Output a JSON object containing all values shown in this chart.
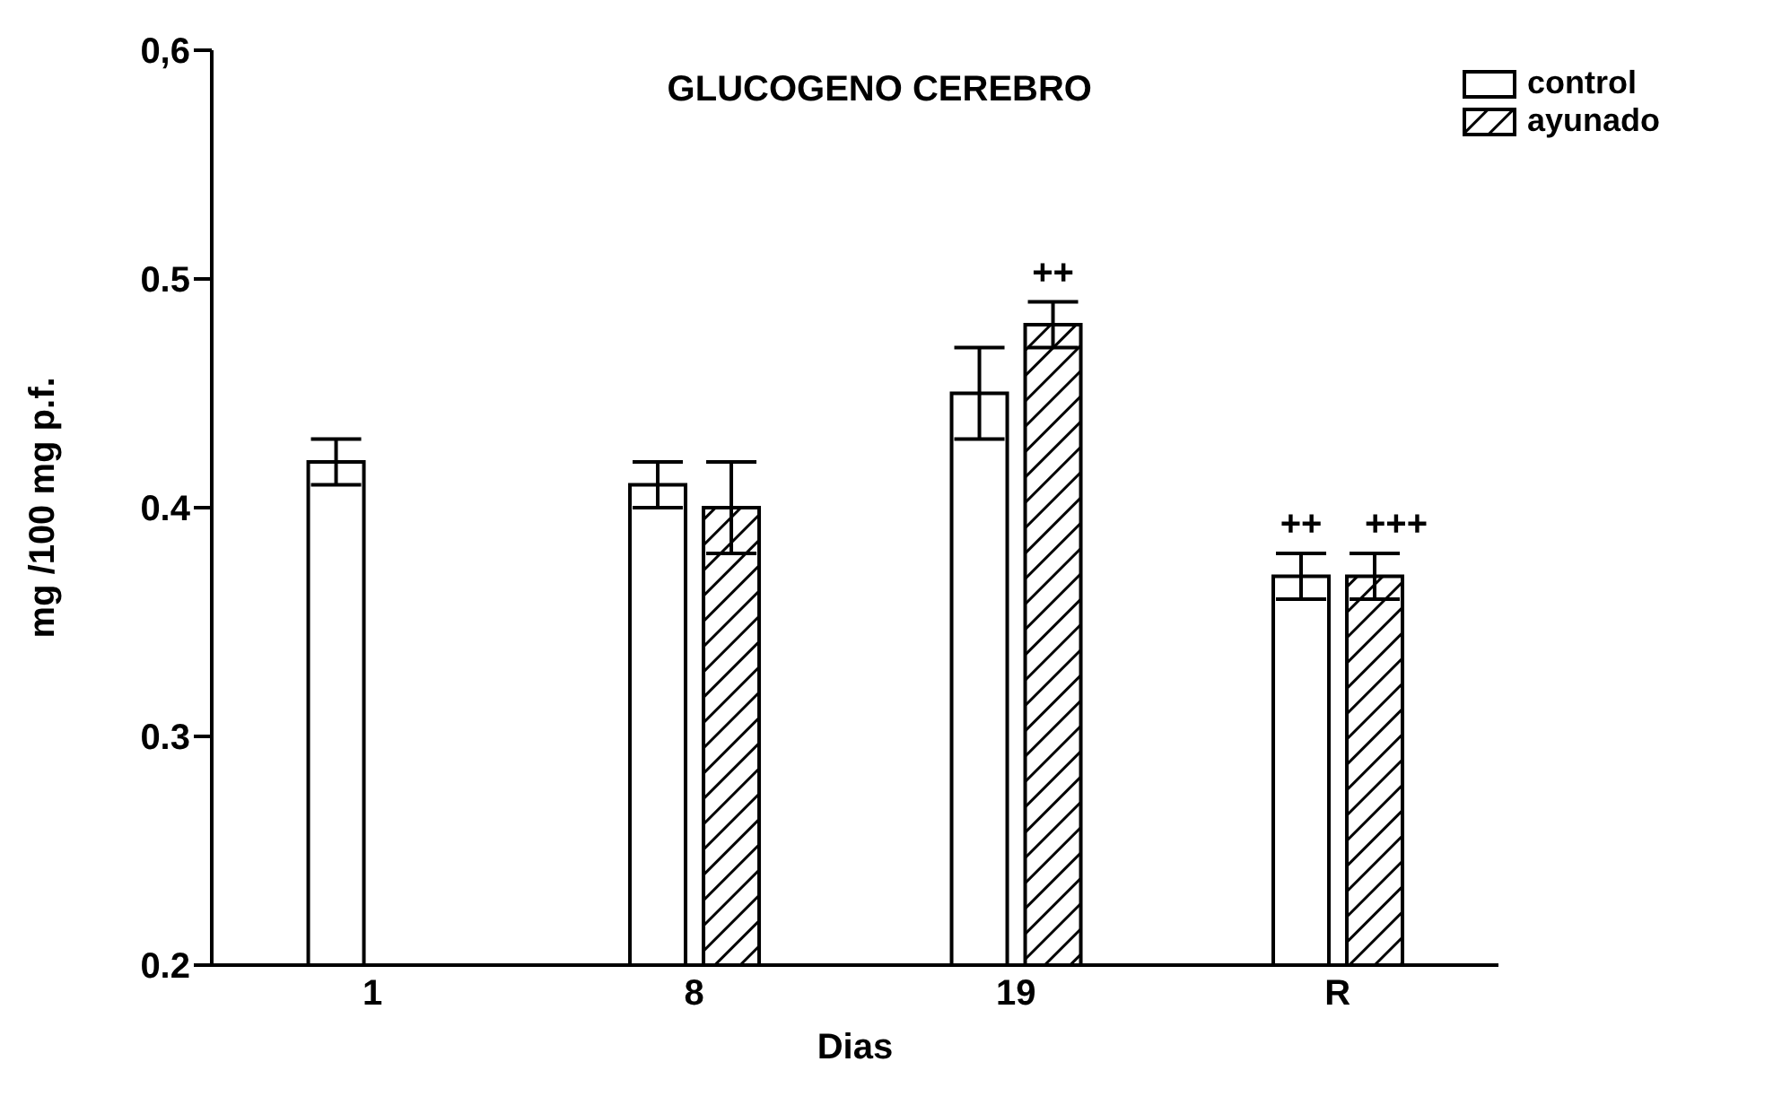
{
  "chart_data": {
    "type": "bar",
    "title": "GLUCOGENO CEREBRO",
    "xlabel": "Dias",
    "ylabel": "mg /100 mg p.f.",
    "categories": [
      "1",
      "8",
      "19",
      "R"
    ],
    "series": [
      {
        "name": "control",
        "color": "#ffffff",
        "values": [
          0.42,
          0.41,
          0.45,
          0.37
        ],
        "errors": [
          0.01,
          0.01,
          0.02,
          0.01
        ],
        "value_labels": [
          null,
          null,
          null,
          "++"
        ]
      },
      {
        "name": "ayunado",
        "color": "#000000",
        "values": [
          null,
          0.4,
          0.48,
          0.37
        ],
        "errors": [
          null,
          0.02,
          0.01,
          0.01
        ],
        "value_labels": [
          null,
          null,
          "++",
          "+++"
        ]
      }
    ],
    "ylim": [
      0.2,
      0.6
    ],
    "yticks": [
      0.2,
      0.3,
      0.4,
      0.5,
      {
        "value": 0.6,
        "label": "0,6"
      }
    ],
    "grid": false,
    "legend": "top right"
  }
}
